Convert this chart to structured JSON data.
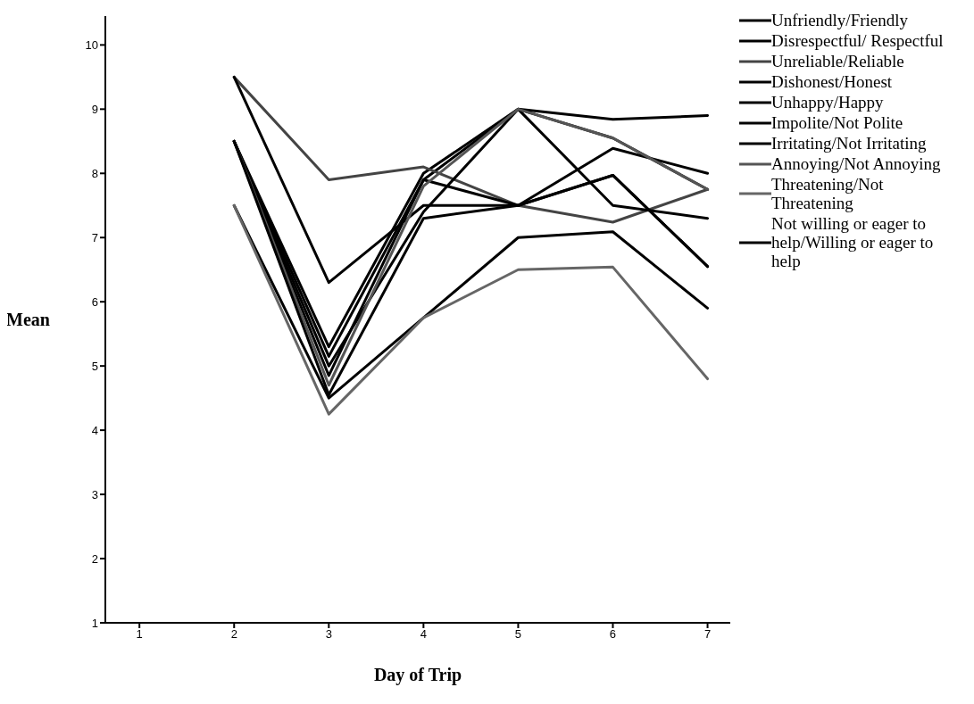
{
  "chart_data": {
    "type": "line",
    "xlabel": "Day of Trip",
    "ylabel": "Mean",
    "x": [
      2,
      3,
      4,
      5,
      6,
      7
    ],
    "xlim": [
      0.64,
      7.24
    ],
    "xticks": [
      1,
      2,
      3,
      4,
      5,
      6,
      7
    ],
    "ylim": [
      1,
      10.45
    ],
    "yticks": [
      1,
      2,
      3,
      4,
      5,
      6,
      7,
      8,
      9,
      10
    ],
    "grid": false,
    "legend": "right",
    "marker": "none",
    "line_style": "solid",
    "series": [
      {
        "name": "Unfriendly/Friendly",
        "color": "#000000",
        "values": [
          8.5,
          5.3,
          8.0,
          9.0,
          8.84,
          8.9
        ]
      },
      {
        "name": "Disrespectful/ Respectful",
        "color": "#000000",
        "values": [
          8.5,
          5.15,
          7.9,
          9.0,
          8.55,
          7.75
        ]
      },
      {
        "name": "Unreliable/Reliable",
        "color": "#444444",
        "values": [
          9.5,
          7.9,
          8.1,
          7.5,
          7.24,
          7.75
        ]
      },
      {
        "name": "Dishonest/Honest",
        "color": "#000000",
        "values": [
          8.5,
          5.0,
          7.4,
          9.0,
          7.5,
          7.3
        ]
      },
      {
        "name": "Unhappy/Happy",
        "color": "#000000",
        "values": [
          9.5,
          6.3,
          7.5,
          7.5,
          8.39,
          8.0
        ]
      },
      {
        "name": "Impolite/Not Polite",
        "color": "#000000",
        "values": [
          8.5,
          4.85,
          7.9,
          7.5,
          7.97,
          6.55
        ]
      },
      {
        "name": "Irritating/Not Irritating",
        "color": "#000000",
        "values": [
          7.5,
          4.5,
          5.75,
          7.0,
          7.09,
          5.9
        ]
      },
      {
        "name": "Annoying/Not Annoying",
        "color": "#555555",
        "values": [
          8.5,
          4.7,
          7.8,
          9.0,
          8.55,
          7.75
        ]
      },
      {
        "name": "Threatening/Not Threatening",
        "color": "#666666",
        "values": [
          7.5,
          4.25,
          5.75,
          6.5,
          6.54,
          4.8
        ]
      },
      {
        "name": "Not willing or eager to help/Willing or eager to help",
        "color": "#000000",
        "values": [
          8.5,
          4.55,
          7.3,
          7.5,
          7.97,
          6.55
        ]
      }
    ]
  }
}
